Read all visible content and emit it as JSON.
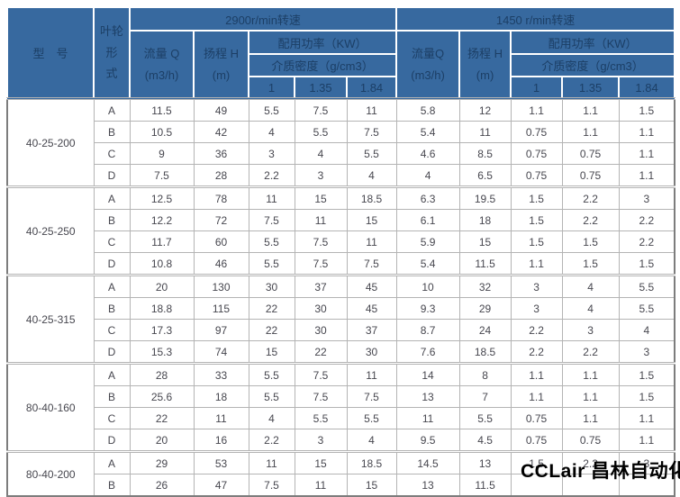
{
  "colors": {
    "header_bg": "#37699F",
    "header_text": "#1C3F66",
    "outer_border": "#7d7d7d",
    "grid_line": "#b4b4b4",
    "data_text": "#47474f"
  },
  "watermark": "CCLair 昌林自动化",
  "table": {
    "headers": {
      "model": "型　号",
      "impeller": "叶轮形\n式",
      "speed_2900": "2900r/min转速",
      "speed_1450": "1450 r/min转速",
      "flow_2900": "流量 Q\n(m3/h)",
      "head_2900": "扬程 H\n(m)",
      "flow_1450": "流量Q\n(m3/h)",
      "head_1450": "扬程 H\n(m)",
      "power_2900": "配用功率（KW）",
      "power_1450": "配用功率（KW）",
      "density_2900": "介质密度（g/cm3）",
      "density_1450": "介质密度（g/cm3）",
      "density_cols_2900": [
        "1",
        "1.35",
        "1.84"
      ],
      "density_cols_1450": [
        "1",
        "1.35",
        "1.84"
      ]
    },
    "sections": [
      {
        "model": "40-25-200",
        "rows": [
          {
            "type": "A",
            "r2900": [
              "11.5",
              "49",
              "5.5",
              "7.5",
              "11"
            ],
            "r1450": [
              "5.8",
              "12",
              "1.1",
              "1.1",
              "1.5"
            ]
          },
          {
            "type": "B",
            "r2900": [
              "10.5",
              "42",
              "4",
              "5.5",
              "7.5"
            ],
            "r1450": [
              "5.4",
              "11",
              "0.75",
              "1.1",
              "1.1"
            ]
          },
          {
            "type": "C",
            "r2900": [
              "9",
              "36",
              "3",
              "4",
              "5.5"
            ],
            "r1450": [
              "4.6",
              "8.5",
              "0.75",
              "0.75",
              "1.1"
            ]
          },
          {
            "type": "D",
            "r2900": [
              "7.5",
              "28",
              "2.2",
              "3",
              "4"
            ],
            "r1450": [
              "4",
              "6.5",
              "0.75",
              "0.75",
              "1.1"
            ]
          }
        ]
      },
      {
        "model": "40-25-250",
        "rows": [
          {
            "type": "A",
            "r2900": [
              "12.5",
              "78",
              "11",
              "15",
              "18.5"
            ],
            "r1450": [
              "6.3",
              "19.5",
              "1.5",
              "2.2",
              "3"
            ]
          },
          {
            "type": "B",
            "r2900": [
              "12.2",
              "72",
              "7.5",
              "11",
              "15"
            ],
            "r1450": [
              "6.1",
              "18",
              "1.5",
              "2.2",
              "2.2"
            ]
          },
          {
            "type": "C",
            "r2900": [
              "11.7",
              "60",
              "5.5",
              "7.5",
              "11"
            ],
            "r1450": [
              "5.9",
              "15",
              "1.5",
              "1.5",
              "2.2"
            ]
          },
          {
            "type": "D",
            "r2900": [
              "10.8",
              "46",
              "5.5",
              "7.5",
              "7.5"
            ],
            "r1450": [
              "5.4",
              "11.5",
              "1.1",
              "1.5",
              "1.5"
            ]
          }
        ]
      },
      {
        "model": "40-25-315",
        "rows": [
          {
            "type": "A",
            "r2900": [
              "20",
              "130",
              "30",
              "37",
              "45"
            ],
            "r1450": [
              "10",
              "32",
              "3",
              "4",
              "5.5"
            ]
          },
          {
            "type": "B",
            "r2900": [
              "18.8",
              "115",
              "22",
              "30",
              "45"
            ],
            "r1450": [
              "9.3",
              "29",
              "3",
              "4",
              "5.5"
            ]
          },
          {
            "type": "C",
            "r2900": [
              "17.3",
              "97",
              "22",
              "30",
              "37"
            ],
            "r1450": [
              "8.7",
              "24",
              "2.2",
              "3",
              "4"
            ]
          },
          {
            "type": "D",
            "r2900": [
              "15.3",
              "74",
              "15",
              "22",
              "30"
            ],
            "r1450": [
              "7.6",
              "18.5",
              "2.2",
              "2.2",
              "3"
            ]
          }
        ]
      },
      {
        "model": "80-40-160",
        "rows": [
          {
            "type": "A",
            "r2900": [
              "28",
              "33",
              "5.5",
              "7.5",
              "11"
            ],
            "r1450": [
              "14",
              "8",
              "1.1",
              "1.1",
              "1.5"
            ]
          },
          {
            "type": "B",
            "r2900": [
              "25.6",
              "18",
              "5.5",
              "7.5",
              "7.5"
            ],
            "r1450": [
              "13",
              "7",
              "1.1",
              "1.1",
              "1.5"
            ]
          },
          {
            "type": "C",
            "r2900": [
              "22",
              "11",
              "4",
              "5.5",
              "5.5"
            ],
            "r1450": [
              "11",
              "5.5",
              "0.75",
              "1.1",
              "1.1"
            ]
          },
          {
            "type": "D",
            "r2900": [
              "20",
              "16",
              "2.2",
              "3",
              "4"
            ],
            "r1450": [
              "9.5",
              "4.5",
              "0.75",
              "0.75",
              "1.1"
            ]
          }
        ]
      },
      {
        "model": "80-40-200",
        "rows": [
          {
            "type": "A",
            "r2900": [
              "29",
              "53",
              "11",
              "15",
              "18.5"
            ],
            "r1450": [
              "14.5",
              "13",
              "1.5",
              "2.2",
              "3"
            ]
          },
          {
            "type": "B",
            "r2900": [
              "26",
              "47",
              "7.5",
              "11",
              "15"
            ],
            "r1450": [
              "13",
              "11.5",
              "",
              "",
              ""
            ]
          }
        ]
      }
    ]
  }
}
